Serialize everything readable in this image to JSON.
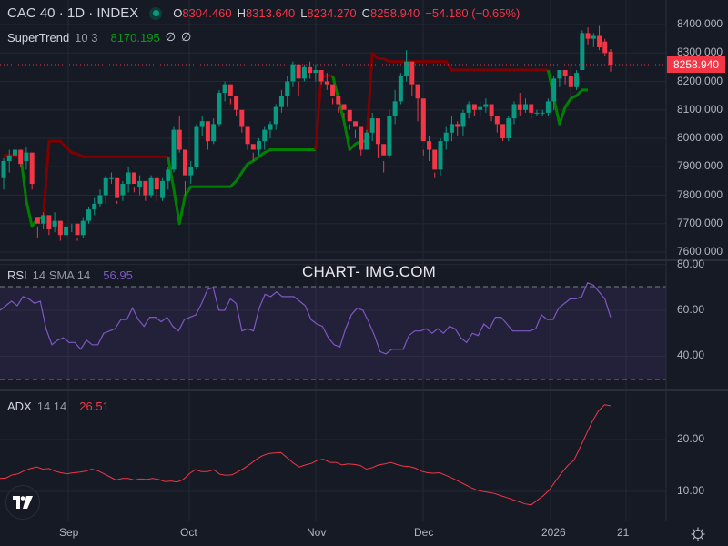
{
  "header": {
    "symbol_title": "CAC 40 · 1D · INDEX",
    "market_status": "open",
    "ohlc": {
      "open_label": "O",
      "open": "8304.460",
      "high_label": "H",
      "high": "8313.640",
      "low_label": "L",
      "low": "8234.270",
      "close_label": "C",
      "close": "8258.940",
      "change": "−54.180 (−0.65%)"
    }
  },
  "indicators": {
    "supertrend": {
      "name": "SuperTrend",
      "params": "10 3",
      "value": "8170.195",
      "extra1": "∅",
      "extra2": "∅"
    },
    "rsi": {
      "name": "RSI",
      "params": "14 SMA 14",
      "value": "56.95"
    },
    "adx": {
      "name": "ADX",
      "params": "14 14",
      "value": "26.51"
    }
  },
  "watermark": "CHART- IMG.COM",
  "price_axis": {
    "labels": [
      "8400.000",
      "8300.000",
      "8200.000",
      "8100.000",
      "8000.000",
      "7900.000",
      "7800.000",
      "7700.000",
      "7600.000"
    ],
    "current_price_tag": "8258.940"
  },
  "rsi_axis": {
    "labels": [
      "80.00",
      "60.00",
      "40.00"
    ]
  },
  "adx_axis": {
    "labels": [
      "20.00",
      "10.00"
    ]
  },
  "time_axis": {
    "labels": [
      "Sep",
      "Oct",
      "Nov",
      "Dec",
      "2026",
      "21"
    ]
  },
  "colors": {
    "background": "#161a25",
    "up": "#089981",
    "down": "#f23645",
    "supertrend_up": "#008000",
    "supertrend_down": "#800000",
    "rsi_line": "#7e57c2",
    "rsi_band": "#7e57c2",
    "adx_line": "#f23645",
    "grid": "#242832"
  },
  "chart_data": [
    {
      "type": "candlestick",
      "title": "CAC 40 · 1D · INDEX",
      "ylabel": "Price",
      "ylim": [
        7580,
        8450
      ],
      "x_ticks": [
        "Sep",
        "Oct",
        "Nov",
        "Dec",
        "2026",
        "21"
      ],
      "y_ticks": [
        7600,
        7700,
        7800,
        7900,
        8000,
        8100,
        8200,
        8300,
        8400
      ],
      "last": {
        "open": 8304.46,
        "high": 8313.64,
        "low": 8234.27,
        "close": 8258.94,
        "change": -54.18,
        "change_pct": -0.65
      },
      "candles": [
        [
          7860,
          7930,
          7820,
          7920
        ],
        [
          7920,
          7960,
          7880,
          7940
        ],
        [
          7940,
          7990,
          7900,
          7960
        ],
        [
          7960,
          7930,
          7900,
          7910
        ],
        [
          7920,
          7970,
          7890,
          7950
        ],
        [
          7950,
          7880,
          7820,
          7840
        ],
        [
          7720,
          7690,
          7650,
          7700
        ],
        [
          7700,
          7740,
          7680,
          7730
        ],
        [
          7730,
          7690,
          7660,
          7680
        ],
        [
          7690,
          7740,
          7670,
          7710
        ],
        [
          7710,
          7670,
          7640,
          7660
        ],
        [
          7660,
          7700,
          7650,
          7690
        ],
        [
          7690,
          7700,
          7670,
          7690
        ],
        [
          7700,
          7650,
          7640,
          7660
        ],
        [
          7660,
          7720,
          7650,
          7710
        ],
        [
          7710,
          7760,
          7700,
          7750
        ],
        [
          7750,
          7790,
          7730,
          7770
        ],
        [
          7770,
          7820,
          7760,
          7800
        ],
        [
          7800,
          7870,
          7770,
          7860
        ],
        [
          7860,
          7880,
          7840,
          7860
        ],
        [
          7860,
          7780,
          7770,
          7790
        ],
        [
          7800,
          7850,
          7780,
          7840
        ],
        [
          7840,
          7900,
          7810,
          7880
        ],
        [
          7880,
          7830,
          7810,
          7840
        ],
        [
          7830,
          7870,
          7800,
          7850
        ],
        [
          7850,
          7810,
          7780,
          7800
        ],
        [
          7800,
          7870,
          7790,
          7860
        ],
        [
          7860,
          7820,
          7780,
          7820
        ],
        [
          7790,
          7860,
          7780,
          7850
        ],
        [
          7850,
          7900,
          7820,
          7890
        ],
        [
          7890,
          8040,
          7880,
          8030
        ],
        [
          8030,
          8080,
          7950,
          7960
        ],
        [
          7960,
          7850,
          7800,
          7870
        ],
        [
          7870,
          7920,
          7840,
          7900
        ],
        [
          7900,
          8050,
          7890,
          8040
        ],
        [
          8040,
          8080,
          8010,
          8060
        ],
        [
          8060,
          8000,
          7960,
          7990
        ],
        [
          7990,
          8070,
          7980,
          8050
        ],
        [
          8050,
          8170,
          8040,
          8160
        ],
        [
          8160,
          8200,
          8130,
          8190
        ],
        [
          8190,
          8140,
          8120,
          8150
        ],
        [
          8150,
          8130,
          8080,
          8100
        ],
        [
          8100,
          8070,
          8020,
          8040
        ],
        [
          8040,
          7990,
          7960,
          7980
        ],
        [
          7980,
          7950,
          7920,
          7960
        ],
        [
          7960,
          8000,
          7940,
          7990
        ],
        [
          7990,
          8040,
          7960,
          8030
        ],
        [
          8030,
          8060,
          8000,
          8050
        ],
        [
          8050,
          8120,
          8030,
          8110
        ],
        [
          8110,
          8170,
          8090,
          8150
        ],
        [
          8150,
          8220,
          8110,
          8200
        ],
        [
          8200,
          8270,
          8180,
          8260
        ],
        [
          8260,
          8200,
          8150,
          8210
        ],
        [
          8210,
          8260,
          8200,
          8250
        ],
        [
          8250,
          8270,
          8210,
          8230
        ],
        [
          8230,
          8260,
          8200,
          8240
        ],
        [
          8240,
          8210,
          8190,
          8200
        ],
        [
          8200,
          8230,
          8170,
          8190
        ],
        [
          8190,
          8140,
          8120,
          8150
        ],
        [
          8150,
          8110,
          8090,
          8120
        ],
        [
          8120,
          8090,
          8070,
          8100
        ],
        [
          8100,
          8050,
          8030,
          8060
        ],
        [
          8060,
          8030,
          8000,
          8040
        ],
        [
          8040,
          7960,
          7940,
          7960
        ],
        [
          7960,
          8030,
          7960,
          8020
        ],
        [
          8020,
          8090,
          7990,
          8070
        ],
        [
          8070,
          8040,
          7930,
          7980
        ],
        [
          7980,
          7920,
          7880,
          7940
        ],
        [
          7940,
          8100,
          7930,
          8080
        ],
        [
          8080,
          8170,
          8050,
          8130
        ],
        [
          8130,
          8230,
          8120,
          8220
        ],
        [
          8220,
          8310,
          8200,
          8270
        ],
        [
          8270,
          8230,
          8150,
          8190
        ],
        [
          8190,
          8140,
          8060,
          8140
        ],
        [
          8140,
          7960,
          7940,
          7990
        ],
        [
          7990,
          8010,
          7920,
          7960
        ],
        [
          7960,
          7880,
          7860,
          7890
        ],
        [
          7890,
          8000,
          7870,
          7990
        ],
        [
          7990,
          8040,
          7960,
          8020
        ],
        [
          8020,
          8080,
          7990,
          8050
        ],
        [
          8050,
          8060,
          8010,
          8040
        ],
        [
          8040,
          8100,
          8010,
          8090
        ],
        [
          8090,
          8130,
          8070,
          8120
        ],
        [
          8120,
          8110,
          8080,
          8100
        ],
        [
          8100,
          8130,
          8080,
          8110
        ],
        [
          8110,
          8140,
          8090,
          8120
        ],
        [
          8120,
          8100,
          8060,
          8080
        ],
        [
          8080,
          8060,
          8020,
          8050
        ],
        [
          8050,
          8020,
          7990,
          8000
        ],
        [
          8000,
          8080,
          7990,
          8070
        ],
        [
          8070,
          8130,
          8050,
          8120
        ],
        [
          8120,
          8160,
          8080,
          8100
        ],
        [
          8100,
          8140,
          8090,
          8120
        ],
        [
          8120,
          8110,
          8070,
          8090
        ],
        [
          8090,
          8100,
          8080,
          8090
        ],
        [
          8090,
          8100,
          8080,
          8090
        ],
        [
          8090,
          8140,
          8080,
          8130
        ],
        [
          8130,
          8220,
          8100,
          8210
        ],
        [
          8210,
          8240,
          8180,
          8240
        ],
        [
          8240,
          8230,
          8190,
          8220
        ],
        [
          8220,
          8260,
          8150,
          8180
        ],
        [
          8180,
          8240,
          8170,
          8230
        ],
        [
          8240,
          8380,
          8240,
          8370
        ],
        [
          8370,
          8390,
          8330,
          8350
        ],
        [
          8350,
          8370,
          8320,
          8360
        ],
        [
          8360,
          8395,
          8310,
          8320
        ],
        [
          8340,
          8350,
          8290,
          8300
        ],
        [
          8304.46,
          8313.64,
          8234.27,
          8258.94
        ]
      ]
    },
    {
      "type": "line",
      "title": "SuperTrend 10 3",
      "last_value": 8170.195,
      "segments": [
        {
          "trend": "down",
          "color": "#800000",
          "from_bar": 0,
          "to_bar": 6,
          "level_approx": 7940
        },
        {
          "trend": "up",
          "color": "#008000",
          "from_bar": 3,
          "to_bar": 6,
          "level_approx": 7720
        },
        {
          "trend": "down",
          "color": "#800000",
          "from_bar": 7,
          "to_bar": 28,
          "level_range": [
            7935,
            7995
          ]
        },
        {
          "trend": "up",
          "color": "#008000",
          "from_bar": 29,
          "to_bar": 54,
          "level_range": [
            7700,
            7965
          ]
        },
        {
          "trend": "down",
          "color": "#800000",
          "from_bar": 55,
          "to_bar": 60,
          "level_range": [
            8220,
            8230
          ]
        },
        {
          "trend": "up",
          "color": "#008000",
          "from_bar": 57,
          "to_bar": 61,
          "level_range": [
            7940,
            8080
          ]
        },
        {
          "trend": "down",
          "color": "#800000",
          "from_bar": 62,
          "to_bar": 96,
          "level_range": [
            8240,
            8310
          ]
        },
        {
          "trend": "up",
          "color": "#008000",
          "from_bar": 96,
          "to_bar": 103,
          "level_range": [
            8060,
            8170
          ]
        }
      ]
    },
    {
      "type": "line",
      "title": "RSI 14 SMA 14",
      "ylim": [
        28,
        82
      ],
      "y_ticks": [
        40,
        60,
        80
      ],
      "bands": [
        70,
        30
      ],
      "last_value": 56.95,
      "values": [
        60,
        62,
        64,
        62,
        66,
        65,
        63,
        64,
        52,
        45,
        47,
        48,
        46,
        46,
        43,
        47,
        45,
        45,
        50,
        51,
        52,
        56,
        56,
        61,
        56,
        53,
        57,
        57,
        55,
        57,
        53,
        51,
        56,
        57,
        58,
        63,
        69,
        70,
        60,
        60,
        65,
        63,
        51,
        52,
        51,
        61,
        67,
        66,
        68,
        66,
        66,
        66,
        64,
        62,
        56,
        54,
        53,
        48,
        45,
        44,
        52,
        58,
        61,
        60,
        55,
        49,
        42,
        41,
        43,
        43,
        43,
        49,
        51,
        51,
        52,
        50,
        52,
        50,
        53,
        52,
        48,
        46,
        50,
        49,
        54,
        52,
        57,
        57,
        54,
        51,
        51,
        51,
        51,
        52,
        58,
        56,
        56,
        61,
        63,
        65,
        65,
        66,
        72,
        71,
        68,
        65,
        57
      ]
    },
    {
      "type": "line",
      "title": "ADX 14 14",
      "ylim": [
        5,
        29
      ],
      "y_ticks": [
        10,
        20
      ],
      "last_value": 26.51,
      "values": [
        12.5,
        12.6,
        13.2,
        13.4,
        14.0,
        14.4,
        14.7,
        14.3,
        14.4,
        13.9,
        13.6,
        13.4,
        13.6,
        13.7,
        13.9,
        14.3,
        14.0,
        13.4,
        12.8,
        12.2,
        12.5,
        12.5,
        12.2,
        12.4,
        12.3,
        12.5,
        12.3,
        11.9,
        12.0,
        11.8,
        12.3,
        13.4,
        14.2,
        13.8,
        13.8,
        14.2,
        13.3,
        13.1,
        13.2,
        13.8,
        14.5,
        15.3,
        16.2,
        16.9,
        17.3,
        17.4,
        17.5,
        16.5,
        15.5,
        14.7,
        15.1,
        15.4,
        16.0,
        16.2,
        15.6,
        15.6,
        15.1,
        15.3,
        15.2,
        15.0,
        14.3,
        14.6,
        15.1,
        15.3,
        15.6,
        15.2,
        14.9,
        14.8,
        14.5,
        13.9,
        13.6,
        13.5,
        13.6,
        13.1,
        12.6,
        12.0,
        11.4,
        10.8,
        10.3,
        10.0,
        9.8,
        9.6,
        9.2,
        8.8,
        8.4,
        8.0,
        7.6,
        7.4,
        8.3,
        9.2,
        10.3,
        12.0,
        13.6,
        15.0,
        16.0,
        18.5,
        21.0,
        23.5,
        25.5,
        26.7,
        26.51
      ]
    }
  ]
}
